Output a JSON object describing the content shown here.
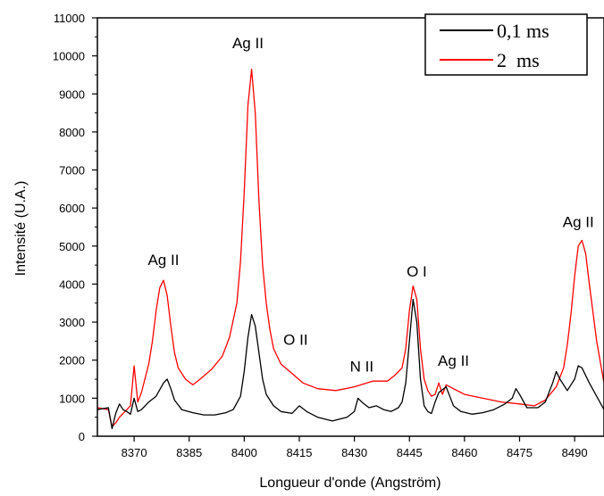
{
  "chart_data": {
    "type": "line",
    "title": "",
    "xlabel": "Longueur d'onde (Angström)",
    "ylabel": "Intensité (U.A.)",
    "xlim": [
      8360,
      8498
    ],
    "ylim": [
      0,
      11000
    ],
    "x_ticks": [
      8370,
      8385,
      8400,
      8415,
      8430,
      8445,
      8460,
      8475,
      8490
    ],
    "y_ticks": [
      0,
      1000,
      2000,
      3000,
      4000,
      5000,
      6000,
      7000,
      8000,
      9000,
      10000,
      11000
    ],
    "x_tick_labels": [
      "8370",
      "8385",
      "8400",
      "8415",
      "8430",
      "8445",
      "8460",
      "8475",
      "8490"
    ],
    "y_tick_labels": [
      "0",
      "1000",
      "2000",
      "3000",
      "4000",
      "5000",
      "6000",
      "7000",
      "8000",
      "9000",
      "10000",
      "11000"
    ],
    "legend_position": "top-right",
    "legend": [
      "0,1 ms",
      "2  ms"
    ],
    "series": [
      {
        "name": "0,1 ms",
        "color": "#000000",
        "x": [
          8360,
          8363,
          8364,
          8365,
          8366,
          8367,
          8368,
          8369,
          8370,
          8371,
          8372,
          8374,
          8376,
          8378,
          8379,
          8380,
          8381,
          8383,
          8386,
          8389,
          8392,
          8395,
          8397,
          8399,
          8400,
          8401,
          8402,
          8403,
          8404,
          8405,
          8406,
          8408,
          8410,
          8413,
          8415,
          8417,
          8420,
          8424,
          8428,
          8430,
          8431,
          8432,
          8434,
          8436,
          8438,
          8440,
          8442,
          8443,
          8444,
          8445,
          8446,
          8447,
          8448,
          8449,
          8450,
          8451,
          8452,
          8453,
          8455,
          8456,
          8457,
          8459,
          8462,
          8465,
          8468,
          8471,
          8473,
          8474,
          8475,
          8477,
          8480,
          8482,
          8484,
          8485,
          8486,
          8488,
          8490,
          8491,
          8492,
          8494,
          8496,
          8498
        ],
        "values": [
          700,
          750,
          200,
          600,
          850,
          700,
          650,
          580,
          1000,
          650,
          700,
          900,
          1050,
          1400,
          1500,
          1250,
          950,
          700,
          620,
          560,
          560,
          620,
          700,
          1050,
          1700,
          2600,
          3200,
          2900,
          2200,
          1500,
          1100,
          800,
          650,
          600,
          800,
          650,
          500,
          400,
          500,
          650,
          1000,
          900,
          750,
          800,
          700,
          650,
          750,
          900,
          1400,
          2500,
          3600,
          3000,
          1500,
          800,
          650,
          600,
          900,
          1150,
          1300,
          1050,
          800,
          650,
          580,
          620,
          700,
          850,
          1000,
          1250,
          1100,
          750,
          750,
          900,
          1400,
          1700,
          1500,
          1200,
          1500,
          1850,
          1800,
          1400,
          1050,
          700
        ]
      },
      {
        "name": "2  ms",
        "color": "#ff0000",
        "x": [
          8360,
          8363,
          8364,
          8365,
          8366,
          8367,
          8368,
          8369,
          8370,
          8371,
          8372,
          8374,
          8375,
          8376,
          8377,
          8378,
          8379,
          8380,
          8381,
          8382,
          8384,
          8386,
          8388,
          8391,
          8394,
          8396,
          8398,
          8399,
          8400,
          8401,
          8402,
          8403,
          8404,
          8405,
          8406,
          8407,
          8408,
          8410,
          8413,
          8416,
          8420,
          8425,
          8430,
          8435,
          8439,
          8441,
          8443,
          8444,
          8445,
          8446,
          8447,
          8448,
          8449,
          8450,
          8451,
          8452,
          8453,
          8454,
          8455,
          8457,
          8460,
          8465,
          8470,
          8475,
          8479,
          8482,
          8485,
          8487,
          8488,
          8489,
          8490,
          8491,
          8492,
          8493,
          8494,
          8496,
          8498
        ],
        "values": [
          750,
          700,
          250,
          350,
          500,
          600,
          700,
          800,
          1850,
          900,
          1150,
          1900,
          2500,
          3300,
          3900,
          4100,
          3700,
          2900,
          2200,
          1800,
          1500,
          1350,
          1500,
          1750,
          2100,
          2600,
          3500,
          4600,
          6400,
          8700,
          9650,
          8500,
          6200,
          4500,
          3500,
          2800,
          2300,
          1900,
          1650,
          1400,
          1250,
          1200,
          1300,
          1450,
          1450,
          1600,
          1800,
          2300,
          3300,
          3950,
          3600,
          2300,
          1500,
          1200,
          1050,
          1100,
          1400,
          1100,
          1350,
          1250,
          1100,
          1000,
          900,
          850,
          800,
          950,
          1300,
          1800,
          2400,
          3200,
          4200,
          5000,
          5150,
          4800,
          4000,
          2500,
          1400
        ]
      }
    ],
    "annotations": [
      {
        "text": "Ag II",
        "x": 8378,
        "y": 4500
      },
      {
        "text": "Ag II",
        "x": 8401,
        "y": 10200
      },
      {
        "text": "O II",
        "x": 8414,
        "y": 2400
      },
      {
        "text": "N II",
        "x": 8432,
        "y": 1700
      },
      {
        "text": "O I",
        "x": 8447,
        "y": 4200
      },
      {
        "text": "Ag II",
        "x": 8457,
        "y": 1850
      },
      {
        "text": "Ag II",
        "x": 8491,
        "y": 5500
      }
    ]
  }
}
